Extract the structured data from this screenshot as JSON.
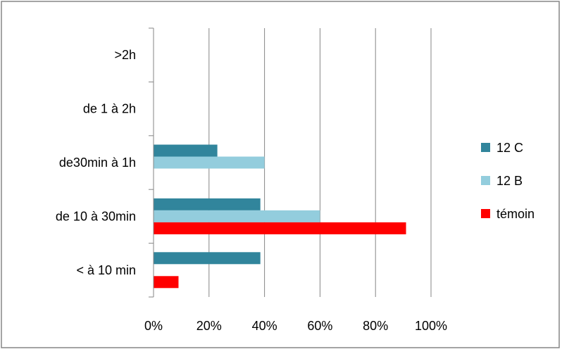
{
  "chart_data": {
    "type": "bar",
    "orientation": "horizontal",
    "categories": [
      "< à 10 min",
      "de 10 à 30min",
      "de30min à 1h",
      "de 1 à 2h",
      ">2h"
    ],
    "series": [
      {
        "name": "12 C",
        "color": "#31859C",
        "values": [
          0.385,
          0.385,
          0.23,
          0,
          0
        ]
      },
      {
        "name": "12 B",
        "color": "#93CDDD",
        "values": [
          0,
          0.6,
          0.4,
          0,
          0
        ]
      },
      {
        "name": "témoin",
        "color": "#FF0000",
        "values": [
          0.09,
          0.91,
          0,
          0,
          0
        ]
      }
    ],
    "xlim": [
      0,
      1
    ],
    "xticks": [
      "0%",
      "20%",
      "40%",
      "60%",
      "80%",
      "100%"
    ],
    "grid": true,
    "legend": "right"
  }
}
